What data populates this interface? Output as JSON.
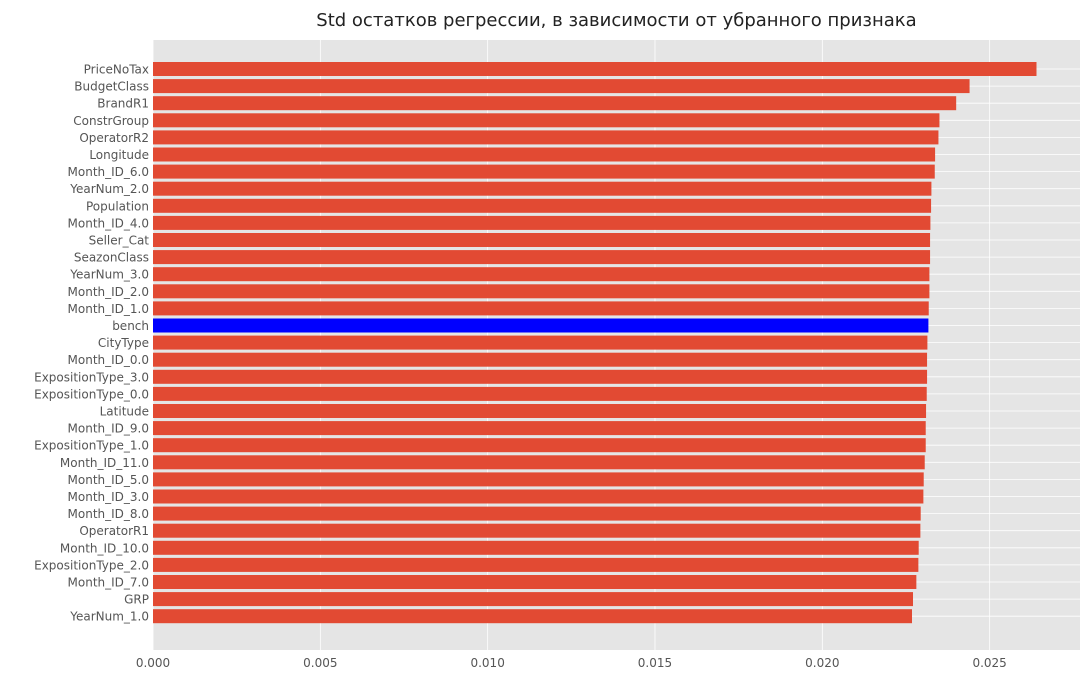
{
  "chart_data": {
    "type": "bar",
    "orientation": "horizontal",
    "title": "Std остатков регрессии, в зависимости от убранного признака",
    "xlabel": "",
    "ylabel": "",
    "xlim": [
      0,
      0.0277
    ],
    "x_ticks": [
      "0.000",
      "0.005",
      "0.010",
      "0.015",
      "0.020",
      "0.025"
    ],
    "grid": true,
    "style": "ggplot",
    "colors": {
      "background": "#E5E5E5",
      "grid": "#FFFFFF",
      "bar": "#E24A33",
      "highlight": "#0000FF"
    },
    "highlight_category": "bench",
    "categories": [
      "PriceNoTax",
      "BudgetClass",
      "BrandR1",
      "ConstrGroup",
      "OperatorR2",
      "Longitude",
      "Month_ID_6.0",
      "YearNum_2.0",
      "Population",
      "Month_ID_4.0",
      "Seller_Cat",
      "SeazonClass",
      "YearNum_3.0",
      "Month_ID_2.0",
      "Month_ID_1.0",
      "bench",
      "CityType",
      "Month_ID_0.0",
      "ExpositionType_3.0",
      "ExpositionType_0.0",
      "Latitude",
      "Month_ID_9.0",
      "ExpositionType_1.0",
      "Month_ID_11.0",
      "Month_ID_5.0",
      "Month_ID_3.0",
      "Month_ID_8.0",
      "OperatorR1",
      "Month_ID_10.0",
      "ExpositionType_2.0",
      "Month_ID_7.0",
      "GRP",
      "YearNum_1.0"
    ],
    "values": [
      0.0264,
      0.0244,
      0.024,
      0.0235,
      0.02347,
      0.02337,
      0.02336,
      0.02326,
      0.02325,
      0.02323,
      0.02322,
      0.02322,
      0.0232,
      0.0232,
      0.02318,
      0.02317,
      0.02314,
      0.02313,
      0.02313,
      0.02312,
      0.0231,
      0.02309,
      0.02309,
      0.02306,
      0.02303,
      0.02302,
      0.02294,
      0.02293,
      0.02288,
      0.02287,
      0.02281,
      0.02271,
      0.02268
    ]
  }
}
